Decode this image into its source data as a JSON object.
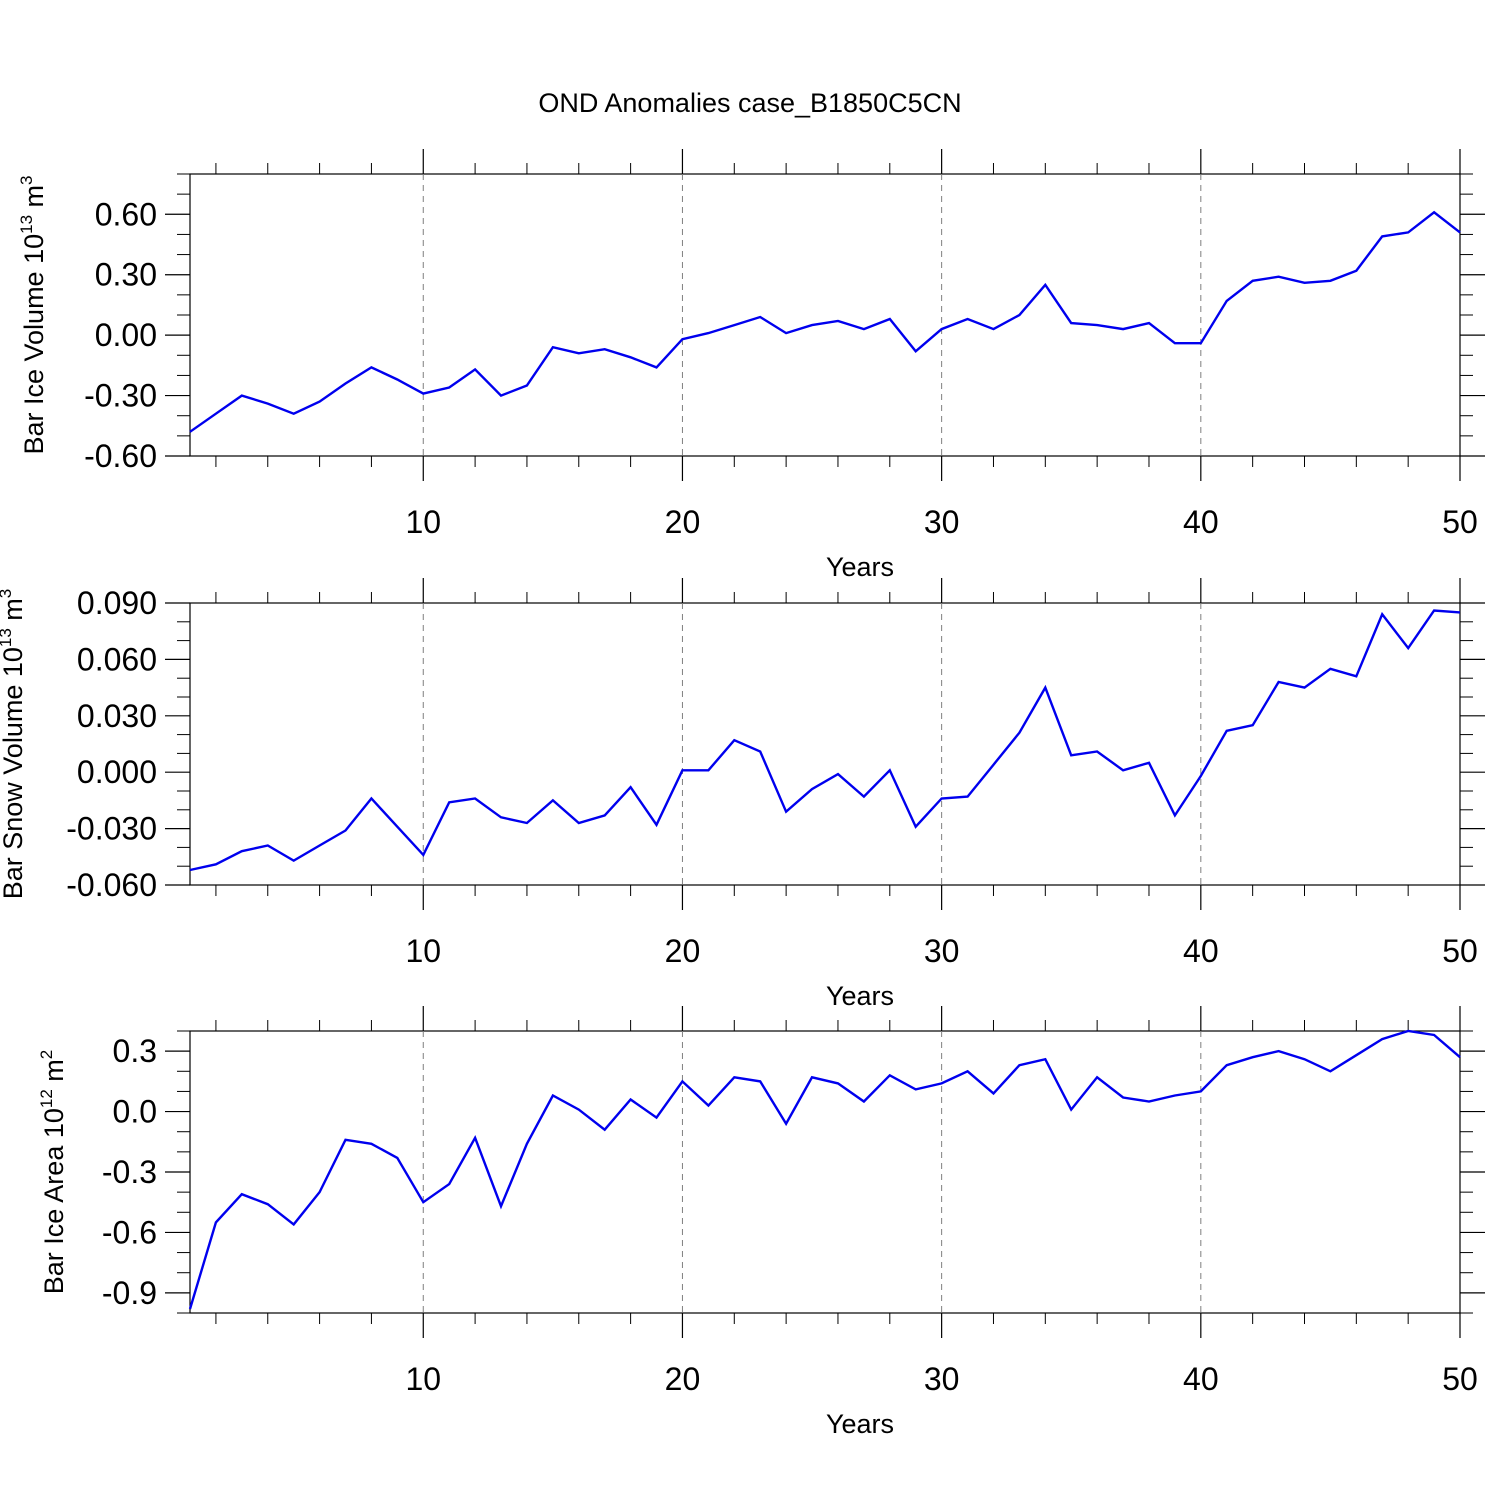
{
  "title": "OND Anomalies case_B1850C5CN",
  "chart_data": [
    {
      "type": "line",
      "ylabel": {
        "prefix": "Bar Ice Volume 10",
        "exp": "13",
        "unit": " m",
        "unit_exp": "3"
      },
      "xlabel": "Years",
      "xlim": [
        1,
        50
      ],
      "ylim": [
        -0.6,
        0.8
      ],
      "yticks": [
        -0.6,
        -0.3,
        0.0,
        0.3,
        0.6
      ],
      "ytick_labels": [
        "-0.60",
        "-0.30",
        "0.00",
        "0.30",
        "0.60"
      ],
      "xticks": [
        10,
        20,
        30,
        40,
        50
      ],
      "xtick_labels": [
        "10",
        "20",
        "30",
        "40",
        "50"
      ],
      "y_minor_step": 0.1,
      "grid_x": true,
      "line_color": "#0000ee",
      "x": [
        1,
        2,
        3,
        4,
        5,
        6,
        7,
        8,
        9,
        10,
        11,
        12,
        13,
        14,
        15,
        16,
        17,
        18,
        19,
        20,
        21,
        22,
        23,
        24,
        25,
        26,
        27,
        28,
        29,
        30,
        31,
        32,
        33,
        34,
        35,
        36,
        37,
        38,
        39,
        40,
        41,
        42,
        43,
        44,
        45,
        46,
        47,
        48,
        49,
        50
      ],
      "y": [
        -0.48,
        -0.39,
        -0.3,
        -0.34,
        -0.39,
        -0.33,
        -0.24,
        -0.16,
        -0.22,
        -0.29,
        -0.26,
        -0.17,
        -0.3,
        -0.25,
        -0.06,
        -0.09,
        -0.07,
        -0.11,
        -0.16,
        -0.02,
        0.01,
        0.05,
        0.09,
        0.01,
        0.05,
        0.07,
        0.03,
        0.08,
        -0.08,
        0.03,
        0.08,
        0.03,
        0.1,
        0.25,
        0.06,
        0.05,
        0.03,
        0.06,
        -0.04,
        -0.04,
        0.17,
        0.27,
        0.29,
        0.26,
        0.27,
        0.32,
        0.49,
        0.51,
        0.61,
        0.51
      ]
    },
    {
      "type": "line",
      "ylabel": {
        "prefix": "Bar Snow Volume 10",
        "exp": "13",
        "unit": " m",
        "unit_exp": "3"
      },
      "xlabel": "Years",
      "xlim": [
        1,
        50
      ],
      "ylim": [
        -0.06,
        0.09
      ],
      "yticks": [
        -0.06,
        -0.03,
        0.0,
        0.03,
        0.06,
        0.09
      ],
      "ytick_labels": [
        "-0.060",
        "-0.030",
        "0.000",
        "0.030",
        "0.060",
        "0.090"
      ],
      "xticks": [
        10,
        20,
        30,
        40,
        50
      ],
      "xtick_labels": [
        "10",
        "20",
        "30",
        "40",
        "50"
      ],
      "y_minor_step": 0.01,
      "grid_x": true,
      "line_color": "#0000ee",
      "x": [
        1,
        2,
        3,
        4,
        5,
        6,
        7,
        8,
        9,
        10,
        11,
        12,
        13,
        14,
        15,
        16,
        17,
        18,
        19,
        20,
        21,
        22,
        23,
        24,
        25,
        26,
        27,
        28,
        29,
        30,
        31,
        32,
        33,
        34,
        35,
        36,
        37,
        38,
        39,
        40,
        41,
        42,
        43,
        44,
        45,
        46,
        47,
        48,
        49,
        50
      ],
      "y": [
        -0.052,
        -0.049,
        -0.042,
        -0.039,
        -0.047,
        -0.039,
        -0.031,
        -0.014,
        -0.029,
        -0.044,
        -0.016,
        -0.014,
        -0.024,
        -0.027,
        -0.015,
        -0.027,
        -0.023,
        -0.008,
        -0.028,
        0.001,
        0.001,
        0.017,
        0.011,
        -0.021,
        -0.009,
        -0.001,
        -0.013,
        0.001,
        -0.029,
        -0.014,
        -0.013,
        0.004,
        0.021,
        0.045,
        0.009,
        0.011,
        0.001,
        0.005,
        -0.023,
        -0.002,
        0.022,
        0.025,
        0.048,
        0.045,
        0.055,
        0.051,
        0.084,
        0.066,
        0.086,
        0.085
      ]
    },
    {
      "type": "line",
      "ylabel": {
        "prefix": "Bar Ice Area 10",
        "exp": "12",
        "unit": " m",
        "unit_exp": "2"
      },
      "xlabel": "Years",
      "xlim": [
        1,
        50
      ],
      "ylim": [
        -1.0,
        0.4
      ],
      "yticks": [
        -0.9,
        -0.6,
        -0.3,
        0.0,
        0.3
      ],
      "ytick_labels": [
        "-0.9",
        "-0.6",
        "-0.3",
        "0.0",
        "0.3"
      ],
      "xticks": [
        10,
        20,
        30,
        40,
        50
      ],
      "xtick_labels": [
        "10",
        "20",
        "30",
        "40",
        "50"
      ],
      "y_minor_step": 0.1,
      "grid_x": true,
      "line_color": "#0000ee",
      "x": [
        1,
        2,
        3,
        4,
        5,
        6,
        7,
        8,
        9,
        10,
        11,
        12,
        13,
        14,
        15,
        16,
        17,
        18,
        19,
        20,
        21,
        22,
        23,
        24,
        25,
        26,
        27,
        28,
        29,
        30,
        31,
        32,
        33,
        34,
        35,
        36,
        37,
        38,
        39,
        40,
        41,
        42,
        43,
        44,
        45,
        46,
        47,
        48,
        49,
        50
      ],
      "y": [
        -0.98,
        -0.55,
        -0.41,
        -0.46,
        -0.56,
        -0.4,
        -0.14,
        -0.16,
        -0.23,
        -0.45,
        -0.36,
        -0.13,
        -0.47,
        -0.16,
        0.08,
        0.01,
        -0.09,
        0.06,
        -0.03,
        0.15,
        0.03,
        0.17,
        0.15,
        -0.06,
        0.17,
        0.14,
        0.05,
        0.18,
        0.11,
        0.14,
        0.2,
        0.09,
        0.23,
        0.26,
        0.01,
        0.17,
        0.07,
        0.05,
        0.08,
        0.1,
        0.23,
        0.27,
        0.3,
        0.26,
        0.2,
        0.28,
        0.36,
        0.4,
        0.38,
        0.27
      ]
    }
  ]
}
